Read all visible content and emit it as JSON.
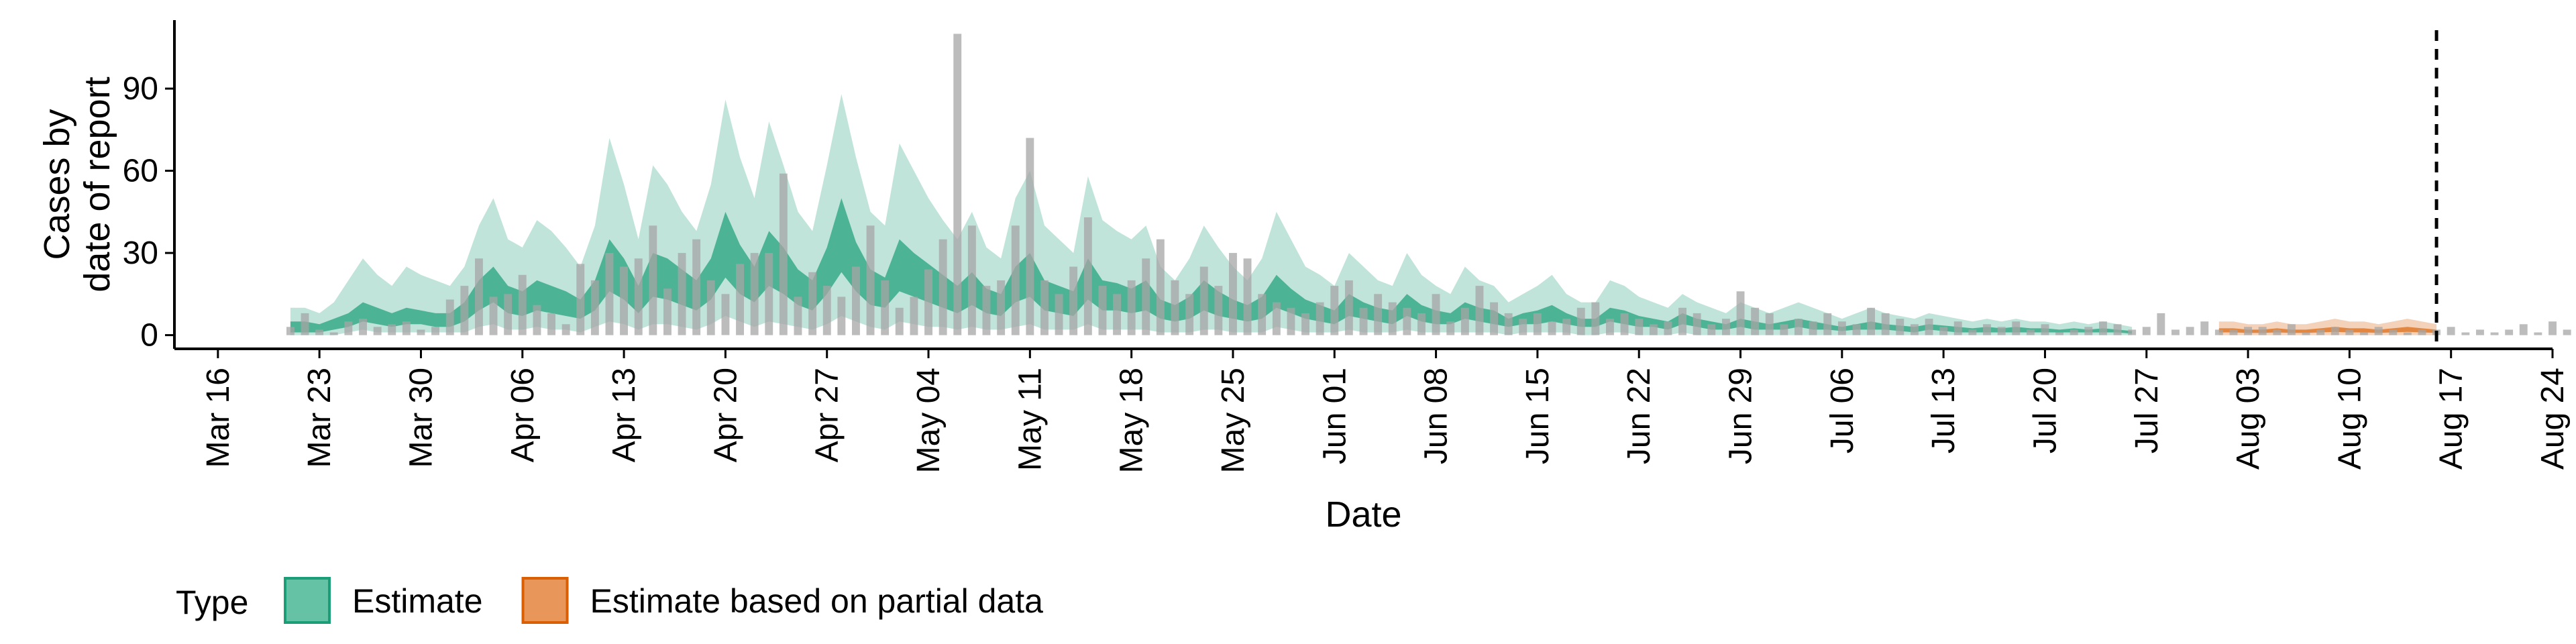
{
  "chart_data": {
    "type": "area",
    "xlabel": "Date",
    "ylabel_lines": [
      "Cases by",
      "date of report"
    ],
    "y_ticks": [
      0,
      30,
      60,
      90
    ],
    "ylim": [
      -5,
      115
    ],
    "x_ticks": [
      "Mar 16",
      "Mar 23",
      "Mar 30",
      "Apr 06",
      "Apr 13",
      "Apr 20",
      "Apr 27",
      "May 04",
      "May 11",
      "May 18",
      "May 25",
      "Jun 01",
      "Jun 08",
      "Jun 15",
      "Jun 22",
      "Jun 29",
      "Jul 06",
      "Jul 13",
      "Jul 20",
      "Jul 27",
      "Aug 03",
      "Aug 10",
      "Aug 17",
      "Aug 24"
    ],
    "x_start_label": "Mar 13",
    "x_end_label": "Aug 24",
    "vline_date": "Aug 16",
    "legend_title": "Type",
    "legend": [
      {
        "name": "Estimate",
        "fill": "#66c2a5",
        "stroke": "#1b9e77"
      },
      {
        "name": "Estimate based on partial data",
        "fill": "#e8965a",
        "stroke": "#d95f02"
      }
    ],
    "colors": {
      "estimate": "#1b9e77",
      "partial": "#d95f02",
      "bars": "#a6a6a6"
    },
    "reported_cases": {
      "start_date": "Mar 21",
      "values": [
        3,
        8,
        2,
        1,
        5,
        6,
        3,
        4,
        5,
        2,
        3,
        13,
        18,
        28,
        14,
        15,
        22,
        11,
        8,
        4,
        26,
        20,
        30,
        25,
        28,
        40,
        17,
        30,
        35,
        20,
        15,
        26,
        30,
        30,
        59,
        14,
        23,
        18,
        14,
        25,
        40,
        20,
        10,
        14,
        24,
        35,
        110,
        40,
        18,
        20,
        40,
        72,
        20,
        15,
        25,
        43,
        18,
        15,
        20,
        28,
        35,
        20,
        15,
        25,
        18,
        30,
        28,
        15,
        12,
        10,
        8,
        12,
        18,
        20,
        10,
        15,
        12,
        10,
        8,
        15,
        5,
        10,
        18,
        12,
        8,
        6,
        8,
        5,
        6,
        10,
        12,
        6,
        8,
        6,
        4,
        5,
        10,
        8,
        4,
        6,
        16,
        10,
        8,
        4,
        6,
        5,
        8,
        5,
        4,
        10,
        8,
        6,
        4,
        6,
        3,
        5,
        2,
        4,
        3,
        5,
        2,
        4,
        1,
        2,
        3,
        5,
        4,
        2,
        3,
        8,
        2,
        3,
        5,
        2,
        2,
        3,
        3,
        2,
        4,
        1,
        2,
        3,
        2,
        1,
        3,
        2,
        1,
        2,
        2,
        3,
        1,
        2,
        1,
        2,
        4,
        1,
        5,
        2,
        3,
        2,
        1,
        2,
        3,
        5,
        1,
        3,
        2,
        1,
        2
      ]
    },
    "estimate_series": {
      "name": "Estimate",
      "start_date": "Mar 21",
      "outer_upper": [
        10,
        10,
        8,
        12,
        20,
        28,
        22,
        18,
        25,
        22,
        20,
        18,
        25,
        40,
        50,
        35,
        32,
        42,
        38,
        32,
        25,
        40,
        72,
        55,
        35,
        62,
        55,
        45,
        38,
        55,
        86,
        65,
        50,
        78,
        62,
        45,
        38,
        62,
        88,
        65,
        45,
        40,
        70,
        60,
        50,
        42,
        35,
        45,
        32,
        28,
        50,
        60,
        40,
        35,
        30,
        58,
        42,
        38,
        35,
        40,
        25,
        20,
        28,
        40,
        32,
        25,
        20,
        28,
        45,
        35,
        25,
        22,
        18,
        30,
        25,
        20,
        18,
        30,
        22,
        18,
        15,
        25,
        20,
        18,
        12,
        15,
        18,
        22,
        15,
        12,
        12,
        20,
        18,
        14,
        12,
        10,
        15,
        12,
        10,
        8,
        12,
        10,
        8,
        10,
        12,
        10,
        8,
        6,
        8,
        10,
        8,
        7,
        6,
        8,
        7,
        6,
        5,
        6,
        5,
        6,
        5,
        5,
        4,
        5,
        4,
        5,
        4,
        3
      ],
      "inner_upper": [
        5,
        5,
        4,
        6,
        8,
        12,
        10,
        8,
        10,
        9,
        8,
        8,
        12,
        20,
        25,
        18,
        16,
        20,
        18,
        16,
        13,
        20,
        35,
        28,
        18,
        30,
        28,
        24,
        20,
        28,
        45,
        33,
        25,
        38,
        32,
        24,
        20,
        32,
        50,
        34,
        24,
        21,
        35,
        30,
        26,
        22,
        18,
        23,
        17,
        15,
        25,
        30,
        20,
        18,
        16,
        28,
        20,
        19,
        17,
        20,
        13,
        11,
        14,
        20,
        16,
        13,
        11,
        14,
        22,
        17,
        13,
        11,
        9,
        15,
        12,
        10,
        9,
        15,
        11,
        9,
        8,
        12,
        10,
        9,
        6,
        8,
        9,
        11,
        8,
        6,
        6,
        10,
        9,
        7,
        6,
        5,
        8,
        6,
        5,
        4,
        6,
        5,
        4,
        5,
        6,
        5,
        4,
        3,
        4,
        5,
        4,
        3.5,
        3,
        4,
        3.5,
        3,
        2.5,
        3,
        2.5,
        3,
        2.5,
        2.5,
        2,
        2.5,
        2,
        2.5,
        2,
        1.5
      ],
      "inner_lower": [
        1,
        1,
        1,
        2,
        3,
        5,
        4,
        3,
        4,
        4,
        3,
        3,
        5,
        9,
        12,
        8,
        7,
        9,
        8,
        7,
        6,
        9,
        16,
        13,
        8,
        14,
        13,
        11,
        9,
        13,
        21,
        15,
        12,
        18,
        15,
        11,
        9,
        15,
        23,
        16,
        11,
        10,
        16,
        14,
        12,
        10,
        8,
        11,
        8,
        7,
        12,
        14,
        9,
        8,
        7,
        13,
        9,
        9,
        8,
        9,
        6,
        5,
        6,
        9,
        7,
        6,
        5,
        6,
        10,
        8,
        6,
        5,
        4,
        7,
        6,
        5,
        4,
        7,
        5,
        4,
        4,
        6,
        5,
        4,
        3,
        4,
        4,
        5,
        4,
        3,
        3,
        5,
        4,
        3,
        3,
        2,
        4,
        3,
        2,
        2,
        3,
        2,
        2,
        2,
        3,
        2,
        2,
        1.5,
        2,
        2,
        2,
        1.5,
        1,
        2,
        1.5,
        1,
        1,
        1,
        1,
        1,
        1,
        1,
        1,
        1,
        1,
        1,
        1,
        0.5
      ],
      "outer_lower": [
        0,
        0,
        0,
        0,
        1,
        2,
        1,
        1,
        1,
        1,
        1,
        1,
        1,
        3,
        4,
        2,
        2,
        3,
        2,
        2,
        1,
        3,
        5,
        4,
        2,
        4,
        4,
        3,
        2,
        4,
        7,
        5,
        3,
        5,
        4,
        3,
        2,
        4,
        7,
        5,
        3,
        2,
        5,
        4,
        3,
        3,
        2,
        3,
        2,
        2,
        3,
        4,
        2,
        2,
        2,
        4,
        2,
        2,
        2,
        2,
        1,
        1,
        1,
        2,
        2,
        1,
        1,
        1,
        3,
        2,
        1,
        1,
        1,
        2,
        1,
        1,
        1,
        2,
        1,
        1,
        1,
        1,
        1,
        1,
        0,
        1,
        1,
        1,
        1,
        0,
        0,
        1,
        1,
        0,
        0,
        0,
        1,
        0,
        0,
        0,
        0,
        0,
        0,
        0,
        0,
        0,
        0,
        0,
        0,
        0,
        0,
        0,
        0,
        0,
        0,
        0,
        0,
        0,
        0,
        0,
        0,
        0,
        0,
        0,
        0,
        0,
        0,
        0
      ]
    },
    "partial_series": {
      "name": "Estimate based on partial data",
      "start_date": "Aug 01",
      "outer_upper": [
        5,
        5,
        4,
        4,
        5,
        4,
        4,
        5,
        6,
        5,
        5,
        4,
        5,
        6,
        5,
        4
      ],
      "inner_upper": [
        2.5,
        2.5,
        2,
        2,
        2.5,
        2,
        2,
        2.5,
        3,
        2.5,
        2.5,
        2,
        2.5,
        3,
        2.5,
        2
      ],
      "inner_lower": [
        1,
        1,
        0.8,
        0.8,
        1,
        0.8,
        0.8,
        1,
        1.2,
        1,
        1,
        0.8,
        1,
        1.2,
        1,
        0.8
      ],
      "outer_lower": [
        0,
        0,
        0,
        0,
        0,
        0,
        0,
        0,
        0,
        0,
        0,
        0,
        0,
        0,
        0,
        0
      ]
    }
  }
}
